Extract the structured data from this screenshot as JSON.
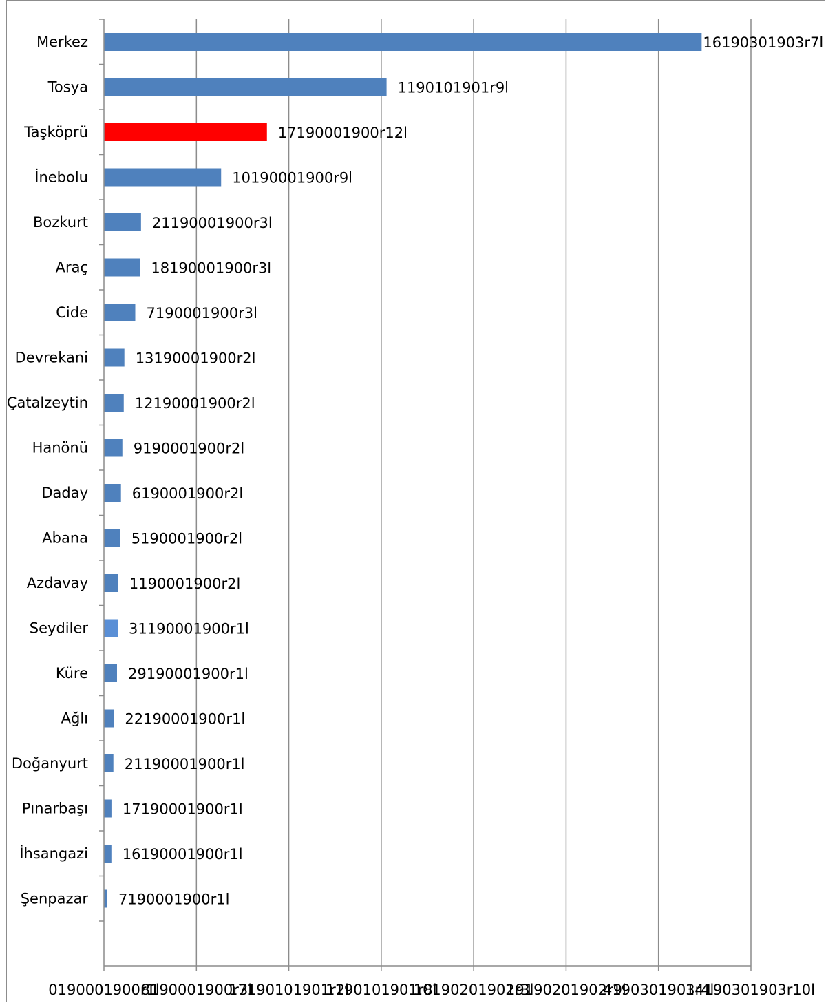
{
  "chart_data": {
    "type": "bar",
    "orientation": "horizontal",
    "title": "",
    "xlabel": "",
    "ylabel": "",
    "categories": [
      "Merkez",
      "Tosya",
      "Taşköprü",
      "İnebolu",
      "Bozkurt",
      "Araç",
      "Cide",
      "Devrekani",
      "Çatalzeytin",
      "Hanönü",
      "Daday",
      "Abana",
      "Azdavay",
      "Seydiler",
      "Küre",
      "Ağlı",
      "Doğanyurt",
      "Pınarbaşı",
      "İhsangazi",
      "Şenpazar"
    ],
    "values": [
      0.9238,
      0.4368,
      0.2519,
      0.1811,
      0.0573,
      0.0557,
      0.0484,
      0.0316,
      0.0306,
      0.0285,
      0.0263,
      0.0252,
      0.0222,
      0.0213,
      0.0202,
      0.0153,
      0.0146,
      0.0116,
      0.0115,
      0.0053
    ],
    "data_labels": [
      "16190301903r7l",
      "1190101901r9l",
      "17190001900r12l",
      "10190001900r9l",
      "21190001900r3l",
      "18190001900r3l",
      "7190001900r3l",
      "13190001900r2l",
      "12190001900r2l",
      "9190001900r2l",
      "6190001900r2l",
      "5190001900r2l",
      "1190001900r2l",
      "31190001900r1l",
      "29190001900r1l",
      "22190001900r1l",
      "21190001900r1l",
      "17190001900r1l",
      "16190001900r1l",
      "7190001900r1l"
    ],
    "x_tick_values": [
      0,
      0.1429,
      0.2857,
      0.4286,
      0.5714,
      0.7143,
      0.8571,
      1.0
    ],
    "x_tick_labels": [
      "0190001900r1l",
      "8190001900r3l",
      "17190101901r2l",
      "1190101901r8l",
      "10190201902r3l",
      "19190201902r9l",
      "4190301903r4l",
      "14190301903r10l"
    ],
    "xlim": [
      0,
      1.0
    ],
    "grid": true,
    "colors": {
      "default_bar": "#4f81bd",
      "highlight_bar": "#ff0000",
      "light_bar": "#5a8fd6",
      "grid": "#8c8c8c"
    },
    "highlighted_category": "Taşköprü",
    "light_category": "Seydiler"
  }
}
